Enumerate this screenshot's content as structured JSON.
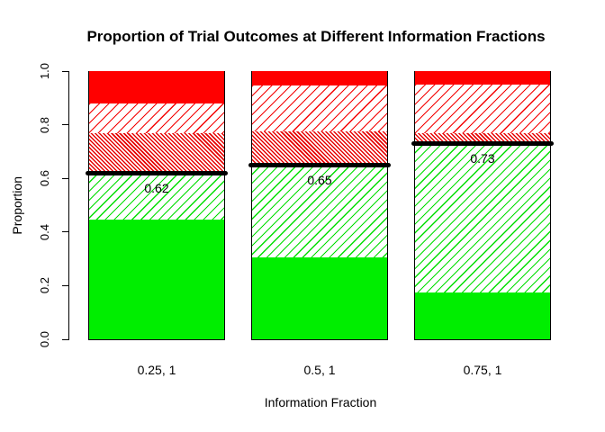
{
  "chart_data": {
    "type": "bar",
    "stacked": true,
    "title": "Proportion of Trial Outcomes at Different Information Fractions",
    "xlabel": "Information Fraction",
    "ylabel": "Proportion",
    "ylim": [
      0.0,
      1.0
    ],
    "ytick_labels": [
      "0.0",
      "0.2",
      "0.4",
      "0.6",
      "0.8",
      "1.0"
    ],
    "ytick_values": [
      0.0,
      0.2,
      0.4,
      0.6,
      0.8,
      1.0
    ],
    "categories": [
      "0.25, 1",
      "0.5, 1",
      "0.75, 1"
    ],
    "series": [
      {
        "name": "solid-green",
        "pattern": "solid",
        "color": "#00EE00",
        "values": [
          0.445,
          0.305,
          0.175
        ]
      },
      {
        "name": "hatch-green",
        "pattern": "diagonal-45",
        "color": "#00DE00",
        "values": [
          0.175,
          0.345,
          0.555
        ]
      },
      {
        "name": "hatch-red-dense",
        "pattern": "diagonal-135-dense",
        "color": "#E60000",
        "values": [
          0.15,
          0.125,
          0.04
        ]
      },
      {
        "name": "hatch-red-light",
        "pattern": "diagonal-45",
        "color": "#F40000",
        "values": [
          0.11,
          0.17,
          0.18
        ]
      },
      {
        "name": "solid-red",
        "pattern": "solid",
        "color": "#FF0000",
        "values": [
          0.12,
          0.055,
          0.05
        ]
      }
    ],
    "threshold_lines": {
      "values": [
        0.62,
        0.65,
        0.73
      ],
      "labels": [
        "0.62",
        "0.65",
        "0.73"
      ],
      "color": "#000000"
    },
    "grid": false,
    "legend": "none",
    "background": "#FFFFFF"
  }
}
